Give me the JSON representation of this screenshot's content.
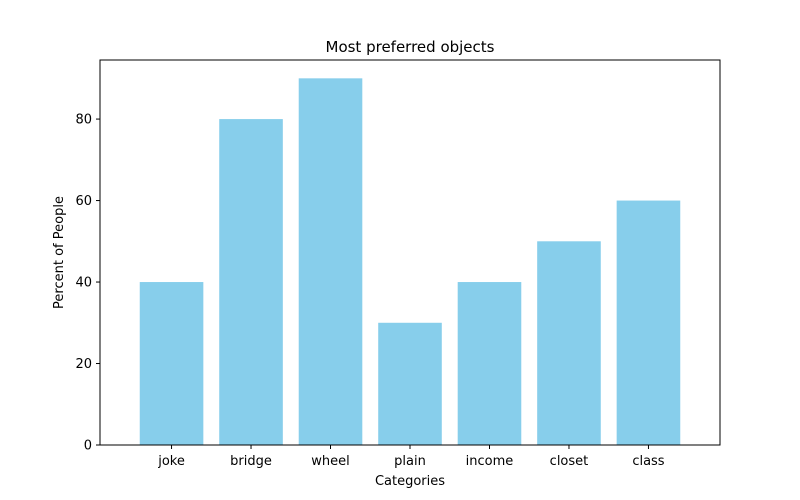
{
  "chart_data": {
    "type": "bar",
    "title": "Most preferred objects",
    "xlabel": "Categories",
    "ylabel": "Percent of People",
    "categories": [
      "joke",
      "bridge",
      "wheel",
      "plain",
      "income",
      "closet",
      "class"
    ],
    "values": [
      40,
      80,
      90,
      30,
      40,
      50,
      60
    ],
    "ylim": [
      0,
      94.5
    ],
    "yticks": [
      0,
      20,
      40,
      60,
      80
    ],
    "grid": false,
    "legend": "none",
    "bar_color": "#87ceeb"
  }
}
